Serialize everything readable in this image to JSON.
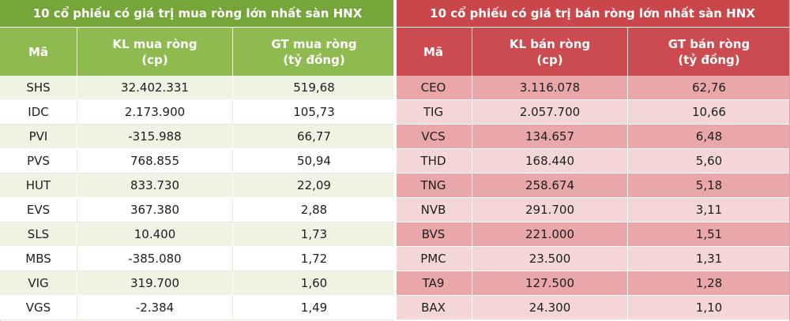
{
  "chart_data": [
    {
      "type": "table",
      "title": "10 cổ phiếu có giá trị mua ròng lớn nhất sàn HNX",
      "columns": [
        "Mã",
        "KL mua ròng\n(cp)",
        "GT mua ròng\n(tỷ đồng)"
      ],
      "rows": [
        [
          "SHS",
          "32.402.331",
          "519,68"
        ],
        [
          "IDC",
          "2.173.900",
          "105,73"
        ],
        [
          "PVI",
          "-315.988",
          "66,77"
        ],
        [
          "PVS",
          "768.855",
          "50,94"
        ],
        [
          "HUT",
          "833.730",
          "22,09"
        ],
        [
          "EVS",
          "367.380",
          "2,88"
        ],
        [
          "SLS",
          "10.400",
          "1,73"
        ],
        [
          "MBS",
          "-385.080",
          "1,72"
        ],
        [
          "VIG",
          "319.700",
          "1,60"
        ],
        [
          "VGS",
          "-2.384",
          "1,49"
        ]
      ]
    },
    {
      "type": "table",
      "title": "10 cổ phiếu có giá trị bán ròng lớn nhất sàn HNX",
      "columns": [
        "Mã",
        "KL bán ròng\n(cp)",
        "GT bán ròng\n(tỷ đồng)"
      ],
      "rows": [
        [
          "CEO",
          "3.116.078",
          "62,76"
        ],
        [
          "TIG",
          "2.057.700",
          "10,66"
        ],
        [
          "VCS",
          "134.657",
          "6,48"
        ],
        [
          "THD",
          "168.440",
          "5,60"
        ],
        [
          "TNG",
          "258.674",
          "5,18"
        ],
        [
          "NVB",
          "291.700",
          "3,11"
        ],
        [
          "BVS",
          "221.000",
          "1,51"
        ],
        [
          "PMC",
          "23.500",
          "1,31"
        ],
        [
          "TA9",
          "127.500",
          "1,28"
        ],
        [
          "BAX",
          "24.300",
          "1,10"
        ]
      ]
    }
  ],
  "colors": {
    "buy_title": "#76a63a",
    "buy_header": "#8fba4f",
    "sell_title": "#c9464a",
    "sell_header": "#cc4b50"
  }
}
